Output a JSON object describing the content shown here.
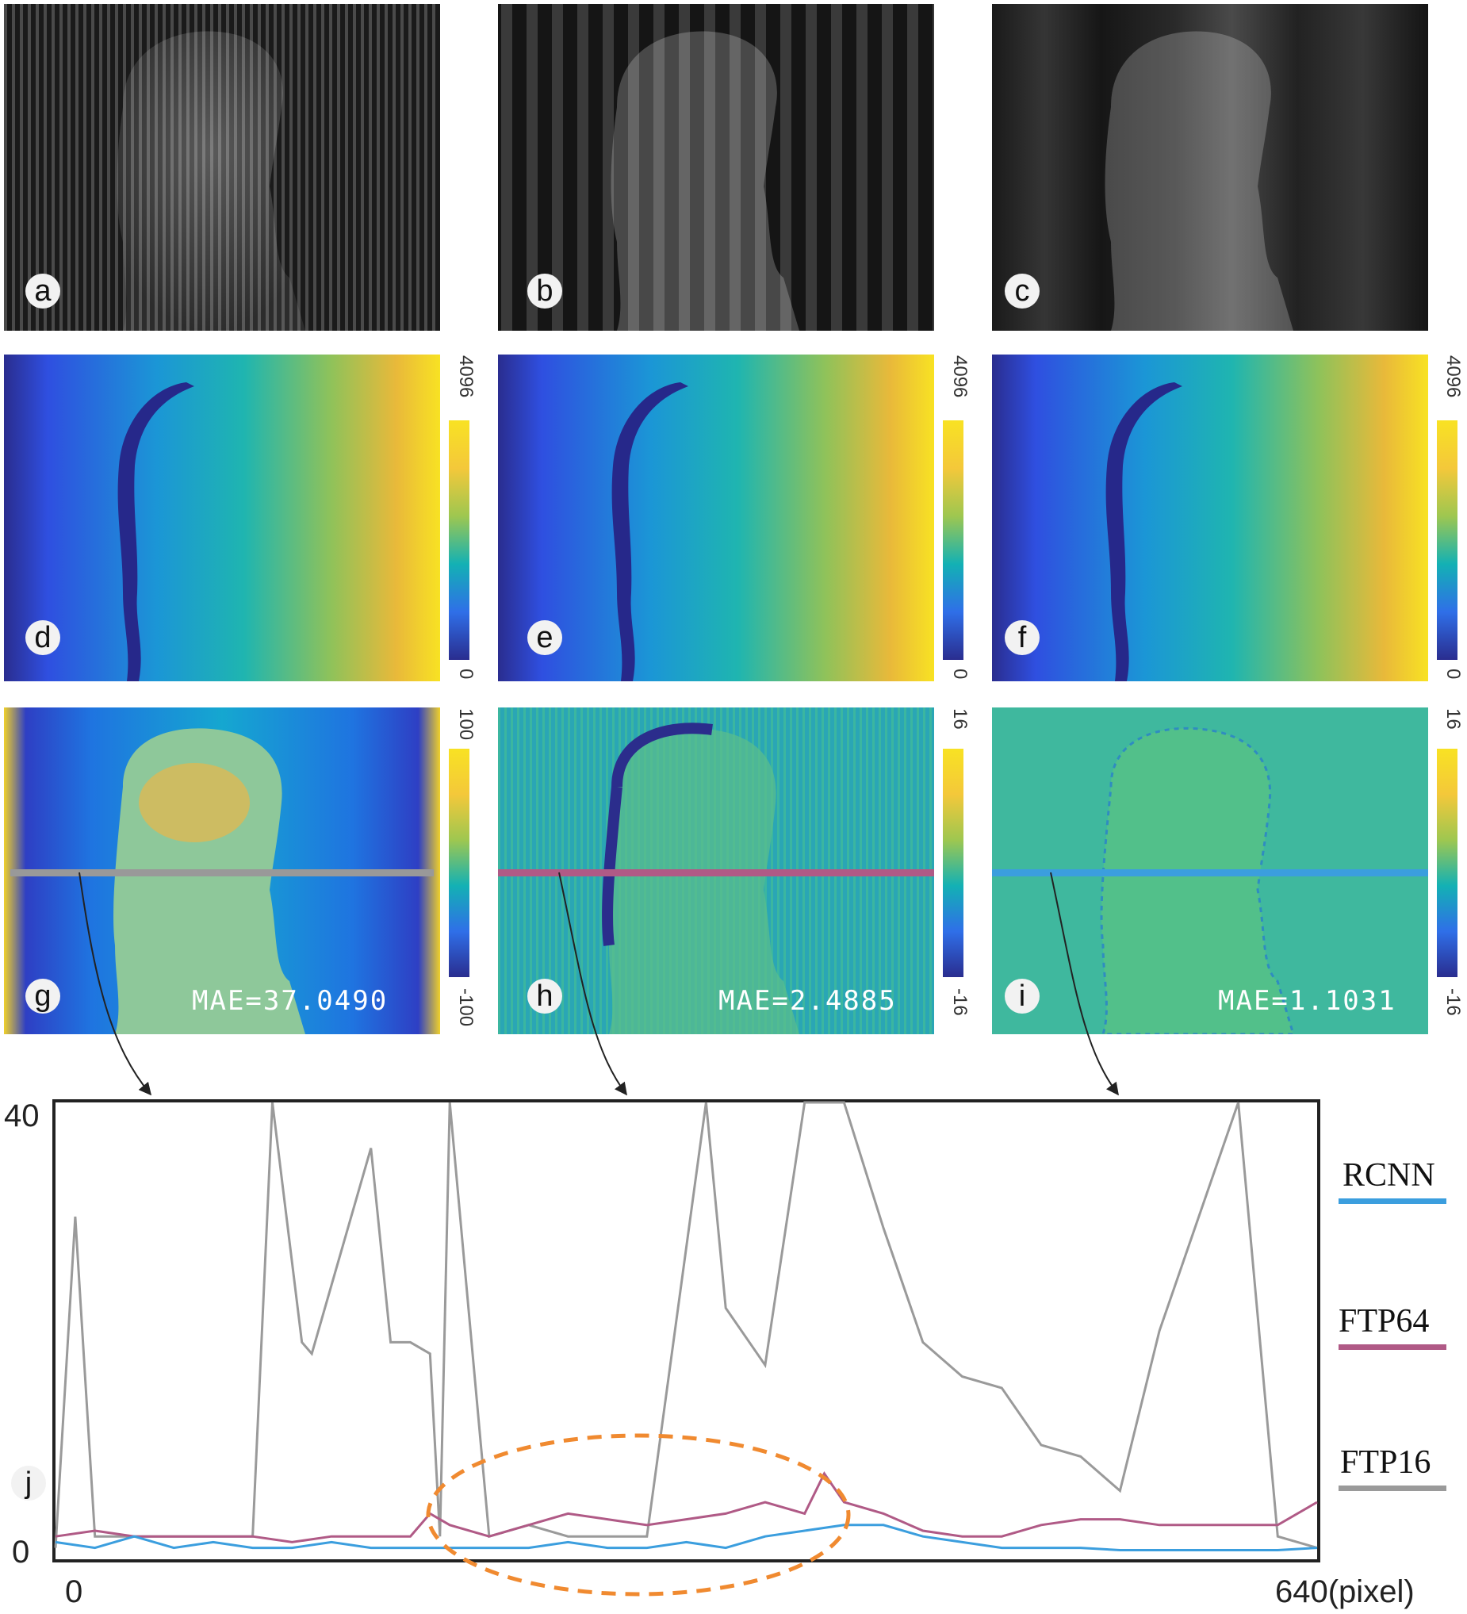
{
  "panels": {
    "a": {
      "label": "a"
    },
    "b": {
      "label": "b"
    },
    "c": {
      "label": "c"
    },
    "d": {
      "label": "d",
      "cbar_max": "4096",
      "cbar_min": "0"
    },
    "e": {
      "label": "e",
      "cbar_max": "4096",
      "cbar_min": "0"
    },
    "f": {
      "label": "f",
      "cbar_max": "4096",
      "cbar_min": "0"
    },
    "g": {
      "label": "g",
      "mae": "MAE=37.0490",
      "cbar_max": "100",
      "cbar_min": "-100"
    },
    "h": {
      "label": "h",
      "mae": "MAE=2.4885",
      "cbar_max": "16",
      "cbar_min": "-16"
    },
    "i": {
      "label": "i",
      "mae": "MAE=1.1031",
      "cbar_max": "16",
      "cbar_min": "-16"
    },
    "j": {
      "label": "j"
    }
  },
  "colors": {
    "RCNN": "#3b9ede",
    "FTP64": "#b05a86",
    "FTP16": "#9a9a9a",
    "highlight": "#f08a30"
  },
  "chart_data": {
    "type": "line",
    "xlabel": "",
    "ylabel": "",
    "x_tick_labels": [
      "0",
      "640(pixel)"
    ],
    "y_tick_labels": [
      "0",
      "40"
    ],
    "xlim": [
      0,
      640
    ],
    "ylim": [
      0,
      40
    ],
    "legend_position": "right",
    "series": [
      {
        "name": "RCNN",
        "x": [
          0,
          20,
          40,
          60,
          80,
          100,
          120,
          140,
          160,
          180,
          200,
          220,
          240,
          260,
          280,
          300,
          320,
          340,
          360,
          380,
          400,
          420,
          440,
          460,
          480,
          500,
          520,
          540,
          560,
          580,
          600,
          620,
          640
        ],
        "y": [
          1.5,
          1,
          2,
          1,
          1.5,
          1,
          1,
          1.5,
          1,
          1,
          1,
          1,
          1,
          1.5,
          1,
          1,
          1.5,
          1,
          2,
          2.5,
          3,
          3,
          2,
          1.5,
          1,
          1,
          1,
          0.8,
          0.8,
          0.8,
          0.8,
          0.8,
          1
        ]
      },
      {
        "name": "FTP64",
        "x": [
          0,
          20,
          40,
          60,
          80,
          100,
          120,
          140,
          160,
          180,
          190,
          200,
          220,
          240,
          260,
          280,
          300,
          320,
          340,
          360,
          380,
          390,
          400,
          420,
          440,
          460,
          480,
          500,
          520,
          540,
          560,
          580,
          600,
          620,
          640
        ],
        "y": [
          2,
          2.5,
          2,
          2,
          2,
          2,
          1.5,
          2,
          2,
          2,
          4,
          3,
          2,
          3,
          4,
          3.5,
          3,
          3.5,
          4,
          5,
          4,
          7.5,
          5,
          4,
          2.5,
          2,
          2,
          3,
          3.5,
          3.5,
          3,
          3,
          3,
          3,
          5
        ]
      },
      {
        "name": "FTP16",
        "x": [
          0,
          10,
          20,
          30,
          40,
          60,
          80,
          100,
          110,
          120,
          125,
          130,
          140,
          160,
          170,
          180,
          190,
          195,
          200,
          220,
          240,
          260,
          280,
          300,
          330,
          340,
          360,
          380,
          400,
          420,
          440,
          460,
          480,
          500,
          520,
          540,
          560,
          580,
          600,
          620,
          640
        ],
        "y": [
          1,
          30,
          2,
          2,
          2,
          2,
          2,
          2,
          40,
          26,
          19,
          18,
          24,
          36,
          19,
          19,
          18,
          2,
          40,
          2,
          3,
          2,
          2,
          2,
          40,
          22,
          17,
          40,
          40,
          29,
          19,
          16,
          15,
          10,
          9,
          6,
          20,
          30,
          40,
          2,
          1
        ]
      }
    ]
  }
}
